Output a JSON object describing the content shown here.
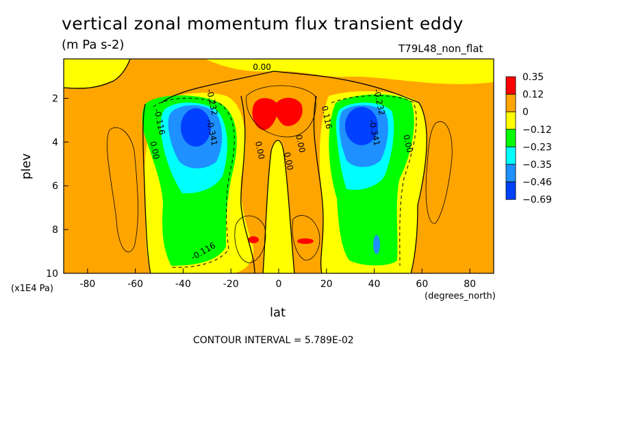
{
  "chart_data": {
    "type": "heatmap",
    "title": "vertical zonal momentum flux transient eddy",
    "units": "(m Pa s-2)",
    "run_name": "T79L48_non_flat",
    "xlabel": "lat",
    "x_units": "(degrees_north)",
    "ylabel": "plev",
    "y_units": "(x1E4 Pa)",
    "xlim": [
      -90,
      90
    ],
    "ylim": [
      10,
      0.2
    ],
    "x_ticks": [
      -80,
      -60,
      -40,
      -20,
      0,
      20,
      40,
      60,
      80
    ],
    "y_ticks": [
      2,
      4,
      6,
      8,
      10
    ],
    "colorbar": {
      "labels": [
        "0.35",
        "0.12",
        "0",
        "−0.12",
        "−0.23",
        "−0.35",
        "−0.46",
        "−0.69"
      ],
      "colors": [
        "#ff0000",
        "#ffa500",
        "#ffff00",
        "#00ff00",
        "#00ffff",
        "#1e90ff",
        "#0040ff"
      ]
    },
    "contour_labels": [
      {
        "text": "0.00",
        "lat": -7,
        "plev": 0.7
      },
      {
        "text": "-0.232",
        "lat": -29,
        "plev": 2.2
      },
      {
        "text": "-0.341",
        "lat": -29,
        "plev": 3.6
      },
      {
        "text": "-0.116",
        "lat": -51,
        "plev": 3.1
      },
      {
        "text": "0.00",
        "lat": -53,
        "plev": 4.4
      },
      {
        "text": "0.00",
        "lat": -9,
        "plev": 4.4
      },
      {
        "text": "0.00",
        "lat": 3,
        "plev": 4.9
      },
      {
        "text": "0.00",
        "lat": 8,
        "plev": 4.1
      },
      {
        "text": "0.116",
        "lat": 19,
        "plev": 2.9
      },
      {
        "text": "-0.232",
        "lat": 41,
        "plev": 2.2
      },
      {
        "text": "-0.341",
        "lat": 39,
        "plev": 3.6
      },
      {
        "text": "0.00",
        "lat": 53,
        "plev": 4.1
      },
      {
        "text": "-0.116",
        "lat": -31,
        "plev": 9.1
      }
    ],
    "contour_interval": "CONTOUR INTERVAL = 5.789E-02"
  }
}
